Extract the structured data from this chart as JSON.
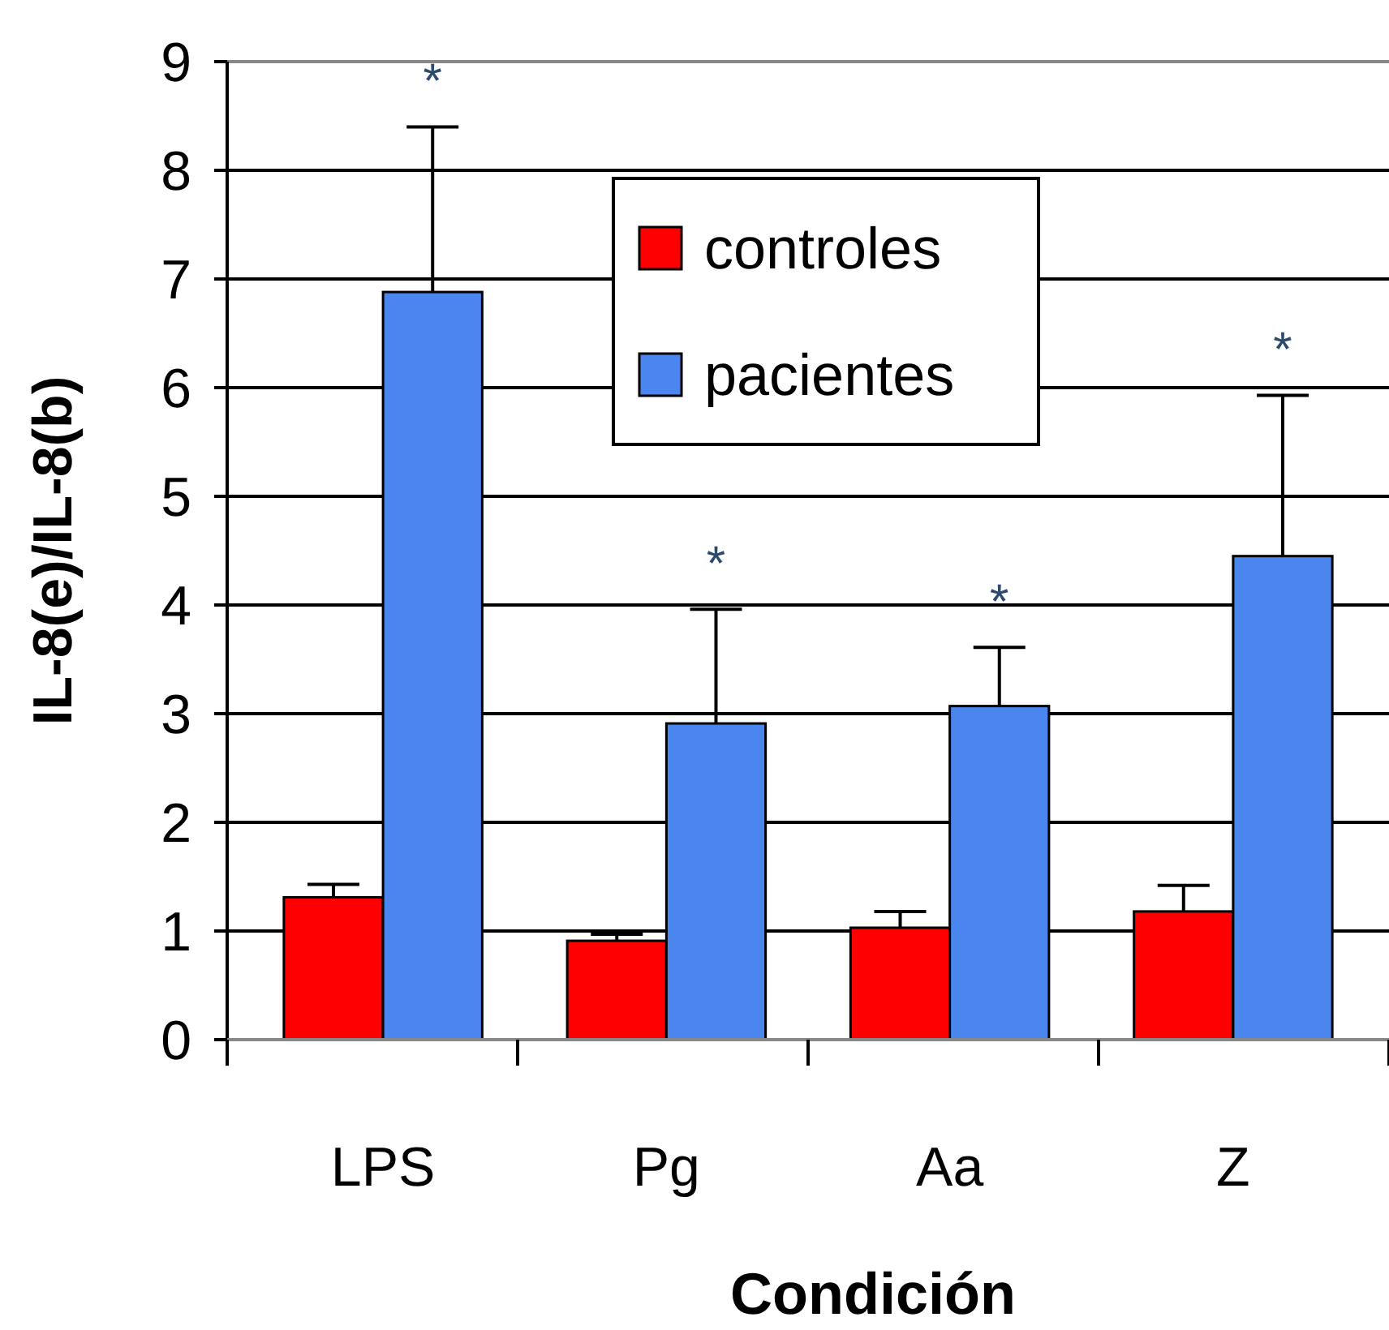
{
  "chart_data": {
    "type": "bar",
    "xlabel": "Condición",
    "ylabel": "IL-8(e)/IL-8(b)",
    "categories": [
      "LPS",
      "Pg",
      "Aa",
      "Z"
    ],
    "series": [
      {
        "name": "controles",
        "color": "#ff0000",
        "values": [
          1.31,
          0.91,
          1.03,
          1.18
        ],
        "errors": [
          [
            1.31,
            1.43
          ],
          [
            0.91,
            0.97
          ],
          [
            1.03,
            1.18
          ],
          [
            1.18,
            1.42
          ]
        ]
      },
      {
        "name": "pacientes",
        "color": "#4a86ee",
        "values": [
          6.88,
          2.91,
          3.07,
          4.45
        ],
        "errors": [
          [
            6.88,
            8.4
          ],
          [
            2.91,
            3.96
          ],
          [
            3.07,
            3.61
          ],
          [
            4.45,
            5.93
          ]
        ]
      }
    ],
    "annotations": [
      "*",
      "*",
      "*",
      "*"
    ],
    "ylim": [
      0,
      9
    ],
    "yticks": [
      0,
      1,
      2,
      3,
      4,
      5,
      6,
      7,
      8,
      9
    ],
    "grid": "y",
    "legend": "top"
  }
}
